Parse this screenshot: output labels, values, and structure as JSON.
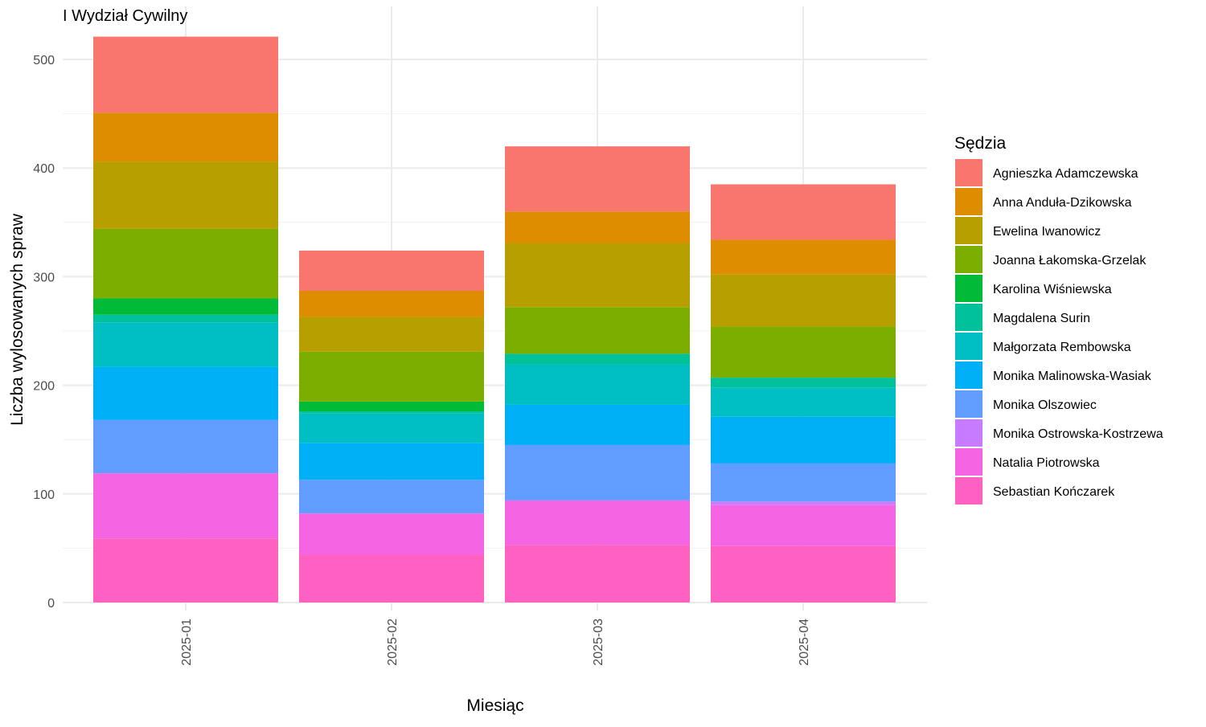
{
  "chart_data": {
    "type": "bar",
    "stacked": true,
    "title": "I Wydział Cywilny",
    "xlabel": "Miesiąc",
    "ylabel": "Liczba wylosowanych spraw",
    "ylim": [
      0,
      525
    ],
    "yticks": [
      0,
      100,
      200,
      300,
      400,
      500
    ],
    "grid": true,
    "legend_title": "Sędzia",
    "legend_position": "right",
    "categories": [
      "2025-01",
      "2025-02",
      "2025-03",
      "2025-04"
    ],
    "series": [
      {
        "name": "Sebastian Kończarek",
        "color": "#FF61C3",
        "values": [
          59,
          44,
          53,
          52
        ]
      },
      {
        "name": "Natalia Piotrowska",
        "color": "#F564E3",
        "values": [
          60,
          38,
          41,
          38
        ]
      },
      {
        "name": "Monika Ostrowska-Kostrzewa",
        "color": "#C77CFF",
        "values": [
          0,
          0,
          0,
          3
        ]
      },
      {
        "name": "Monika Olszowiec",
        "color": "#619CFF",
        "values": [
          49,
          31,
          51,
          35
        ]
      },
      {
        "name": "Monika Malinowska-Wasiak",
        "color": "#00B0F6",
        "values": [
          49,
          34,
          37,
          43
        ]
      },
      {
        "name": "Małgorzata Rembowska",
        "color": "#00BFC4",
        "values": [
          41,
          27,
          37,
          27
        ]
      },
      {
        "name": "Magdalena Surin",
        "color": "#00C19A",
        "values": [
          7,
          2,
          10,
          9
        ]
      },
      {
        "name": "Karolina Wiśniewska",
        "color": "#00BA38",
        "values": [
          15,
          9,
          0,
          0
        ]
      },
      {
        "name": "Joanna Łakomska-Grzelak",
        "color": "#7CAE00",
        "values": [
          64,
          46,
          43,
          47
        ]
      },
      {
        "name": "Ewelina Iwanowicz",
        "color": "#B79F00",
        "values": [
          62,
          32,
          59,
          48
        ]
      },
      {
        "name": "Anna Anduła-Dzikowska",
        "color": "#DE8C00",
        "values": [
          45,
          24,
          29,
          32
        ]
      },
      {
        "name": "Agnieszka Adamczewska",
        "color": "#F8766D",
        "values": [
          70,
          37,
          60,
          51
        ]
      }
    ],
    "legend_order": [
      "Agnieszka Adamczewska",
      "Anna Anduła-Dzikowska",
      "Ewelina Iwanowicz",
      "Joanna Łakomska-Grzelak",
      "Karolina Wiśniewska",
      "Magdalena Surin",
      "Małgorzata Rembowska",
      "Monika Malinowska-Wasiak",
      "Monika Olszowiec",
      "Monika Ostrowska-Kostrzewa",
      "Natalia Piotrowska",
      "Sebastian Kończarek"
    ]
  }
}
